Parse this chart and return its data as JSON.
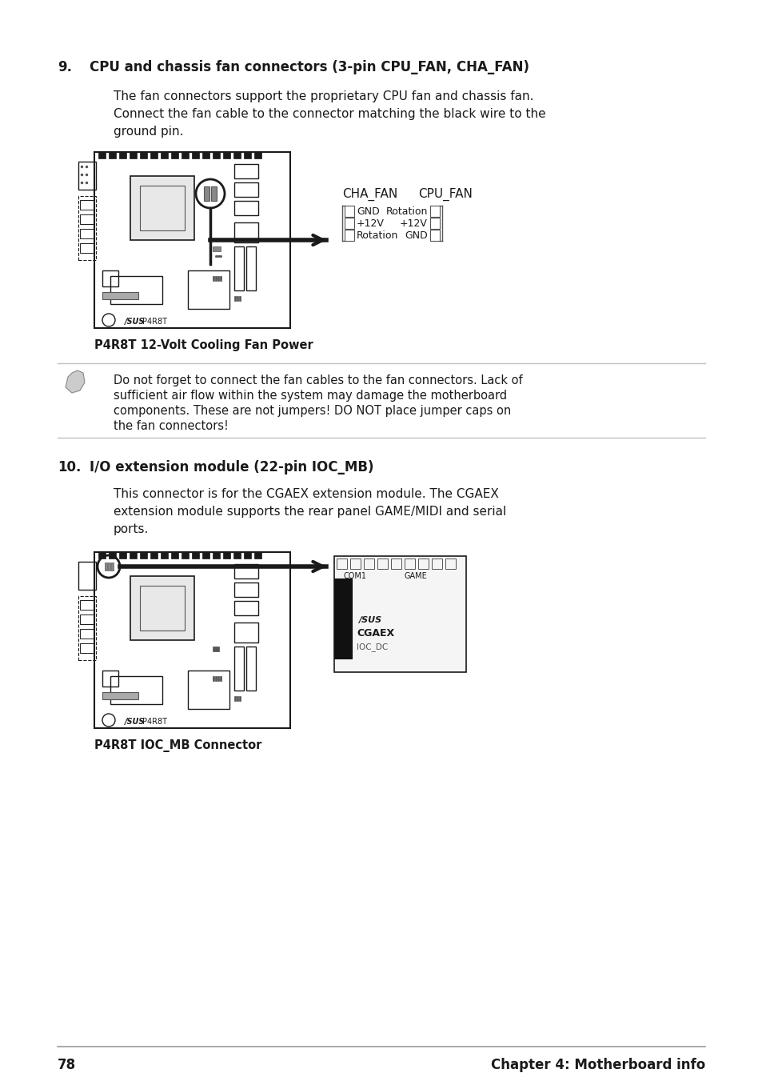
{
  "bg_color": "#ffffff",
  "text_color": "#1a1a1a",
  "page_number": "78",
  "chapter_title": "Chapter 4: Motherboard info",
  "section9_number": "9.",
  "section9_heading": "CPU and chassis fan connectors (3-pin CPU_FAN, CHA_FAN)",
  "section9_body1": "The fan connectors support the proprietary CPU fan and chassis fan.",
  "section9_body2": "Connect the fan cable to the connector matching the black wire to the",
  "section9_body3": "ground pin.",
  "fig1_caption": "P4R8T 12-Volt Cooling Fan Power",
  "note_text1": "Do not forget to connect the fan cables to the fan connectors. Lack of",
  "note_text2": "sufficient air flow within the system may damage the motherboard",
  "note_text3": "components. These are not jumpers! DO NOT place jumper caps on",
  "note_text4": "the fan connectors!",
  "section10_number": "10.",
  "section10_heading": "I/O extension module (22-pin IOC_MB)",
  "section10_body1": "This connector is for the CGAEX extension module. The CGAEX",
  "section10_body2": "extension module supports the rear panel GAME/MIDI and serial",
  "section10_body3": "ports.",
  "fig2_caption": "P4R8T IOC_MB Connector",
  "cha_fan_label": "CHA_FAN",
  "cpu_fan_label": "CPU_FAN",
  "cha_pin1": "GND",
  "cha_pin2": "+12V",
  "cha_pin3": "Rotation",
  "cpu_pin1": "Rotation",
  "cpu_pin2": "+12V",
  "cpu_pin3": "GND",
  "cgaex_com1": "COM1",
  "cgaex_game": "GAME",
  "cgaex_name": "CGAEX",
  "cgaex_ioc": "IOC_DC",
  "asus_logo": "/SUS",
  "p4r8t": "P4R8T"
}
